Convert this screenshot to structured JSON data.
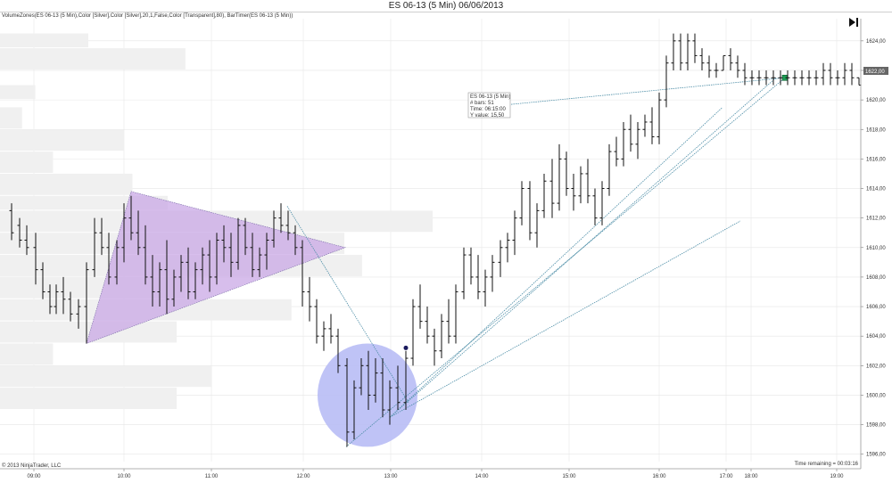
{
  "window": {
    "title": "ES 06-13 (5 Min)  06/06/2013",
    "indicator_label": "VolumeZones(ES 06-13 (5 Min),Color [Silver],Color [Silver],20,1,False,Color [Transparent],80), BarTimer(ES 06-13 (5 Min))",
    "copyright": "© 2013 NinjaTrader, LLC",
    "time_remaining": "Time remaining = 00:03:16",
    "play_icon": "skip-to-end-icon"
  },
  "tooltip": {
    "line1": "ES 06-13 (5 Min)",
    "line2": "# bars:   51",
    "line3": "Time:      06:15:00",
    "line4": "Y value: 15,50"
  },
  "price_marker": "1622,00",
  "colors": {
    "bars": "#111111",
    "grid": "#e6e6e6",
    "volume_zone": "#f0f0f0",
    "triangle": "#c9a8e6",
    "ellipse": "#b8bcf5",
    "line": "#4f8fa8",
    "price_marker_bg": "#666666",
    "square_marker": "#1f9d55",
    "dot_marker": "#1b1b5e"
  },
  "chart_data": {
    "type": "ohlc",
    "title": "ES 06-13 (5 Min)  06/06/2013",
    "ylim": [
      1595.5,
      1625.5
    ],
    "yticks": [
      1596,
      1598,
      1600,
      1602,
      1604,
      1606,
      1608,
      1610,
      1612,
      1614,
      1616,
      1618,
      1620,
      1622,
      1624
    ],
    "yticklabels": [
      "1596,00",
      "1598,00",
      "1600,00",
      "1602,00",
      "1604,00",
      "1606,00",
      "1608,00",
      "1610,00",
      "1612,00",
      "1614,00",
      "1616,00",
      "1618,00",
      "1620,00",
      "1622,00",
      "1624,00"
    ],
    "xticks": [
      "09:00",
      "10:00",
      "11:00",
      "12:00",
      "13:00",
      "14:00",
      "15:00",
      "16:00",
      "17:00",
      "18:00",
      "19:00"
    ],
    "grid": true,
    "bars": [
      {
        "x": 13,
        "o": 1612.5,
        "h": 1613.0,
        "l": 1610.5,
        "c": 1611.0
      },
      {
        "x": 22,
        "o": 1611.5,
        "h": 1612.0,
        "l": 1610.0,
        "c": 1610.5
      },
      {
        "x": 30,
        "o": 1610.5,
        "h": 1611.5,
        "l": 1609.5,
        "c": 1610.0
      },
      {
        "x": 40,
        "o": 1610.0,
        "h": 1611.0,
        "l": 1607.5,
        "c": 1608.5
      },
      {
        "x": 48,
        "o": 1608.5,
        "h": 1609.0,
        "l": 1606.5,
        "c": 1607.0
      },
      {
        "x": 56,
        "o": 1607.0,
        "h": 1607.5,
        "l": 1605.5,
        "c": 1606.0
      },
      {
        "x": 63,
        "o": 1606.0,
        "h": 1607.5,
        "l": 1605.5,
        "c": 1607.0
      },
      {
        "x": 71,
        "o": 1607.0,
        "h": 1608.0,
        "l": 1605.5,
        "c": 1606.5
      },
      {
        "x": 79,
        "o": 1606.5,
        "h": 1607.0,
        "l": 1605.0,
        "c": 1605.5
      },
      {
        "x": 88,
        "o": 1605.5,
        "h": 1606.5,
        "l": 1604.5,
        "c": 1606.0
      },
      {
        "x": 97,
        "o": 1606.0,
        "h": 1609.0,
        "l": 1603.5,
        "c": 1608.5
      },
      {
        "x": 106,
        "o": 1608.5,
        "h": 1612.0,
        "l": 1608.0,
        "c": 1611.0
      },
      {
        "x": 114,
        "o": 1611.0,
        "h": 1612.0,
        "l": 1609.5,
        "c": 1610.0
      },
      {
        "x": 122,
        "o": 1610.0,
        "h": 1611.0,
        "l": 1607.5,
        "c": 1608.0
      },
      {
        "x": 131,
        "o": 1608.0,
        "h": 1610.5,
        "l": 1607.5,
        "c": 1610.0
      },
      {
        "x": 139,
        "o": 1610.0,
        "h": 1613.0,
        "l": 1609.0,
        "c": 1612.0
      },
      {
        "x": 147,
        "o": 1612.0,
        "h": 1613.5,
        "l": 1610.5,
        "c": 1611.0
      },
      {
        "x": 155,
        "o": 1611.0,
        "h": 1612.5,
        "l": 1609.5,
        "c": 1610.0
      },
      {
        "x": 163,
        "o": 1610.0,
        "h": 1611.5,
        "l": 1607.5,
        "c": 1608.0
      },
      {
        "x": 171,
        "o": 1608.0,
        "h": 1609.5,
        "l": 1606.0,
        "c": 1607.0
      },
      {
        "x": 179,
        "o": 1607.0,
        "h": 1609.0,
        "l": 1606.0,
        "c": 1608.5
      },
      {
        "x": 187,
        "o": 1608.5,
        "h": 1610.5,
        "l": 1605.5,
        "c": 1606.5
      },
      {
        "x": 195,
        "o": 1606.5,
        "h": 1608.5,
        "l": 1606.0,
        "c": 1608.0
      },
      {
        "x": 203,
        "o": 1608.0,
        "h": 1609.5,
        "l": 1607.0,
        "c": 1609.0
      },
      {
        "x": 211,
        "o": 1609.0,
        "h": 1610.0,
        "l": 1606.5,
        "c": 1607.0
      },
      {
        "x": 219,
        "o": 1607.0,
        "h": 1609.0,
        "l": 1606.5,
        "c": 1608.5
      },
      {
        "x": 227,
        "o": 1608.5,
        "h": 1610.0,
        "l": 1607.5,
        "c": 1609.5
      },
      {
        "x": 235,
        "o": 1609.5,
        "h": 1610.5,
        "l": 1607.0,
        "c": 1608.0
      },
      {
        "x": 243,
        "o": 1608.0,
        "h": 1611.0,
        "l": 1607.5,
        "c": 1610.5
      },
      {
        "x": 251,
        "o": 1610.5,
        "h": 1611.5,
        "l": 1609.0,
        "c": 1610.0
      },
      {
        "x": 259,
        "o": 1610.0,
        "h": 1611.0,
        "l": 1608.0,
        "c": 1609.0
      },
      {
        "x": 267,
        "o": 1609.0,
        "h": 1612.0,
        "l": 1608.5,
        "c": 1611.5
      },
      {
        "x": 275,
        "o": 1611.5,
        "h": 1612.0,
        "l": 1609.5,
        "c": 1610.0
      },
      {
        "x": 283,
        "o": 1610.0,
        "h": 1611.0,
        "l": 1608.0,
        "c": 1608.5
      },
      {
        "x": 291,
        "o": 1608.5,
        "h": 1610.0,
        "l": 1608.0,
        "c": 1609.5
      },
      {
        "x": 299,
        "o": 1609.5,
        "h": 1611.0,
        "l": 1608.5,
        "c": 1610.5
      },
      {
        "x": 307,
        "o": 1610.5,
        "h": 1612.5,
        "l": 1610.0,
        "c": 1612.0
      },
      {
        "x": 315,
        "o": 1612.0,
        "h": 1613.0,
        "l": 1611.0,
        "c": 1611.5
      },
      {
        "x": 323,
        "o": 1611.5,
        "h": 1612.5,
        "l": 1610.5,
        "c": 1611.0
      },
      {
        "x": 331,
        "o": 1611.0,
        "h": 1611.5,
        "l": 1609.5,
        "c": 1610.0
      },
      {
        "x": 339,
        "o": 1610.0,
        "h": 1610.5,
        "l": 1606.0,
        "c": 1607.0
      },
      {
        "x": 347,
        "o": 1607.0,
        "h": 1608.0,
        "l": 1605.0,
        "c": 1606.0
      },
      {
        "x": 355,
        "o": 1606.0,
        "h": 1606.5,
        "l": 1603.5,
        "c": 1604.0
      },
      {
        "x": 363,
        "o": 1604.0,
        "h": 1605.0,
        "l": 1603.0,
        "c": 1604.5
      },
      {
        "x": 371,
        "o": 1604.5,
        "h": 1605.5,
        "l": 1603.5,
        "c": 1604.0
      },
      {
        "x": 379,
        "o": 1604.0,
        "h": 1604.5,
        "l": 1601.5,
        "c": 1602.0
      },
      {
        "x": 389,
        "o": 1602.0,
        "h": 1602.5,
        "l": 1596.5,
        "c": 1597.5
      },
      {
        "x": 397,
        "o": 1597.5,
        "h": 1601.0,
        "l": 1597.0,
        "c": 1600.5
      },
      {
        "x": 405,
        "o": 1600.5,
        "h": 1602.5,
        "l": 1600.0,
        "c": 1602.0
      },
      {
        "x": 413,
        "o": 1602.0,
        "h": 1603.0,
        "l": 1599.0,
        "c": 1600.0
      },
      {
        "x": 421,
        "o": 1600.0,
        "h": 1602.5,
        "l": 1599.5,
        "c": 1601.5
      },
      {
        "x": 429,
        "o": 1601.5,
        "h": 1602.5,
        "l": 1598.5,
        "c": 1599.0
      },
      {
        "x": 437,
        "o": 1599.0,
        "h": 1601.0,
        "l": 1598.0,
        "c": 1600.5
      },
      {
        "x": 446,
        "o": 1600.5,
        "h": 1602.0,
        "l": 1599.0,
        "c": 1599.5
      },
      {
        "x": 455,
        "o": 1599.5,
        "h": 1603.0,
        "l": 1599.0,
        "c": 1602.5
      },
      {
        "x": 463,
        "o": 1602.5,
        "h": 1606.5,
        "l": 1602.0,
        "c": 1606.0
      },
      {
        "x": 471,
        "o": 1606.0,
        "h": 1607.5,
        "l": 1604.5,
        "c": 1605.0
      },
      {
        "x": 479,
        "o": 1605.0,
        "h": 1606.0,
        "l": 1603.5,
        "c": 1604.0
      },
      {
        "x": 487,
        "o": 1604.0,
        "h": 1604.5,
        "l": 1602.0,
        "c": 1603.0
      },
      {
        "x": 495,
        "o": 1603.0,
        "h": 1605.5,
        "l": 1602.5,
        "c": 1605.0
      },
      {
        "x": 503,
        "o": 1605.0,
        "h": 1606.5,
        "l": 1603.5,
        "c": 1604.0
      },
      {
        "x": 511,
        "o": 1604.0,
        "h": 1607.5,
        "l": 1603.5,
        "c": 1607.0
      },
      {
        "x": 520,
        "o": 1607.0,
        "h": 1610.0,
        "l": 1606.5,
        "c": 1609.5
      },
      {
        "x": 528,
        "o": 1609.5,
        "h": 1610.0,
        "l": 1607.5,
        "c": 1608.0
      },
      {
        "x": 536,
        "o": 1608.0,
        "h": 1609.5,
        "l": 1606.5,
        "c": 1607.0
      },
      {
        "x": 544,
        "o": 1607.0,
        "h": 1608.5,
        "l": 1606.0,
        "c": 1608.0
      },
      {
        "x": 552,
        "o": 1608.0,
        "h": 1609.5,
        "l": 1607.0,
        "c": 1609.0
      },
      {
        "x": 561,
        "o": 1609.0,
        "h": 1610.5,
        "l": 1608.0,
        "c": 1610.0
      },
      {
        "x": 569,
        "o": 1610.0,
        "h": 1611.0,
        "l": 1609.0,
        "c": 1610.5
      },
      {
        "x": 577,
        "o": 1610.5,
        "h": 1612.5,
        "l": 1609.5,
        "c": 1612.0
      },
      {
        "x": 585,
        "o": 1612.0,
        "h": 1614.5,
        "l": 1611.5,
        "c": 1614.0
      },
      {
        "x": 594,
        "o": 1614.0,
        "h": 1614.5,
        "l": 1610.5,
        "c": 1611.0
      },
      {
        "x": 602,
        "o": 1611.0,
        "h": 1613.0,
        "l": 1610.0,
        "c": 1612.5
      },
      {
        "x": 610,
        "o": 1612.5,
        "h": 1615.0,
        "l": 1612.0,
        "c": 1614.5
      },
      {
        "x": 619,
        "o": 1614.5,
        "h": 1616.0,
        "l": 1612.0,
        "c": 1613.0
      },
      {
        "x": 627,
        "o": 1613.0,
        "h": 1617.0,
        "l": 1612.5,
        "c": 1616.0
      },
      {
        "x": 635,
        "o": 1616.0,
        "h": 1616.5,
        "l": 1613.5,
        "c": 1614.0
      },
      {
        "x": 643,
        "o": 1614.0,
        "h": 1615.0,
        "l": 1612.5,
        "c": 1613.5
      },
      {
        "x": 651,
        "o": 1613.5,
        "h": 1615.5,
        "l": 1613.0,
        "c": 1615.0
      },
      {
        "x": 659,
        "o": 1615.0,
        "h": 1616.0,
        "l": 1613.0,
        "c": 1613.5
      },
      {
        "x": 667,
        "o": 1613.5,
        "h": 1614.0,
        "l": 1611.5,
        "c": 1612.0
      },
      {
        "x": 675,
        "o": 1612.0,
        "h": 1614.5,
        "l": 1611.5,
        "c": 1614.0
      },
      {
        "x": 683,
        "o": 1614.0,
        "h": 1617.0,
        "l": 1613.5,
        "c": 1616.5
      },
      {
        "x": 691,
        "o": 1616.5,
        "h": 1617.5,
        "l": 1615.5,
        "c": 1616.0
      },
      {
        "x": 699,
        "o": 1616.0,
        "h": 1618.5,
        "l": 1615.5,
        "c": 1618.0
      },
      {
        "x": 707,
        "o": 1618.0,
        "h": 1619.0,
        "l": 1616.5,
        "c": 1617.0
      },
      {
        "x": 715,
        "o": 1617.0,
        "h": 1618.5,
        "l": 1616.0,
        "c": 1618.0
      },
      {
        "x": 723,
        "o": 1618.0,
        "h": 1619.0,
        "l": 1617.5,
        "c": 1618.5
      },
      {
        "x": 731,
        "o": 1618.5,
        "h": 1619.5,
        "l": 1617.0,
        "c": 1617.5
      },
      {
        "x": 739,
        "o": 1617.5,
        "h": 1620.5,
        "l": 1617.0,
        "c": 1620.0
      },
      {
        "x": 747,
        "o": 1620.0,
        "h": 1623.0,
        "l": 1619.5,
        "c": 1622.5
      },
      {
        "x": 755,
        "o": 1622.5,
        "h": 1624.5,
        "l": 1622.0,
        "c": 1624.0
      },
      {
        "x": 763,
        "o": 1624.0,
        "h": 1624.5,
        "l": 1622.0,
        "c": 1622.5
      },
      {
        "x": 771,
        "o": 1622.5,
        "h": 1624.5,
        "l": 1622.0,
        "c": 1624.0
      },
      {
        "x": 779,
        "o": 1624.0,
        "h": 1624.5,
        "l": 1622.5,
        "c": 1623.0
      },
      {
        "x": 787,
        "o": 1623.0,
        "h": 1623.5,
        "l": 1622.0,
        "c": 1622.5
      },
      {
        "x": 795,
        "o": 1622.5,
        "h": 1623.0,
        "l": 1621.5,
        "c": 1622.0
      },
      {
        "x": 803,
        "o": 1622.0,
        "h": 1622.5,
        "l": 1621.5,
        "c": 1622.0
      },
      {
        "x": 811,
        "o": 1622.0,
        "h": 1623.0,
        "l": 1622.0,
        "c": 1623.0
      },
      {
        "x": 819,
        "o": 1623.0,
        "h": 1623.5,
        "l": 1622.0,
        "c": 1622.5
      },
      {
        "x": 827,
        "o": 1622.5,
        "h": 1623.0,
        "l": 1621.5,
        "c": 1622.0
      },
      {
        "x": 835,
        "o": 1622.0,
        "h": 1622.5,
        "l": 1621.0,
        "c": 1621.5
      },
      {
        "x": 843,
        "o": 1621.5,
        "h": 1622.0,
        "l": 1621.0,
        "c": 1621.5
      },
      {
        "x": 851,
        "o": 1621.5,
        "h": 1622.0,
        "l": 1621.0,
        "c": 1621.5
      },
      {
        "x": 859,
        "o": 1621.5,
        "h": 1622.0,
        "l": 1621.0,
        "c": 1621.5
      },
      {
        "x": 867,
        "o": 1621.5,
        "h": 1622.0,
        "l": 1621.0,
        "c": 1621.5
      },
      {
        "x": 875,
        "o": 1621.5,
        "h": 1622.0,
        "l": 1621.0,
        "c": 1621.5
      },
      {
        "x": 883,
        "o": 1621.5,
        "h": 1622.0,
        "l": 1621.0,
        "c": 1621.5
      },
      {
        "x": 891,
        "o": 1621.5,
        "h": 1622.0,
        "l": 1621.0,
        "c": 1621.5
      },
      {
        "x": 899,
        "o": 1621.5,
        "h": 1622.0,
        "l": 1621.0,
        "c": 1621.5
      },
      {
        "x": 907,
        "o": 1621.5,
        "h": 1622.0,
        "l": 1621.0,
        "c": 1621.5
      },
      {
        "x": 915,
        "o": 1621.5,
        "h": 1622.0,
        "l": 1621.0,
        "c": 1621.5
      },
      {
        "x": 923,
        "o": 1621.5,
        "h": 1622.5,
        "l": 1621.0,
        "c": 1622.0
      },
      {
        "x": 931,
        "o": 1622.0,
        "h": 1622.5,
        "l": 1621.0,
        "c": 1621.5
      },
      {
        "x": 939,
        "o": 1621.5,
        "h": 1622.0,
        "l": 1621.0,
        "c": 1621.5
      },
      {
        "x": 947,
        "o": 1621.5,
        "h": 1622.5,
        "l": 1621.0,
        "c": 1622.0
      },
      {
        "x": 955,
        "o": 1622.0,
        "h": 1622.5,
        "l": 1621.0,
        "c": 1621.5
      },
      {
        "x": 963,
        "o": 1621.5,
        "h": 1621.5,
        "l": 1621.0,
        "c": 1621.0
      }
    ],
    "volume_zones": [
      {
        "lo": 1623.5,
        "hi": 1624.5,
        "rel": 0.2
      },
      {
        "lo": 1622.0,
        "hi": 1623.5,
        "rel": 0.42
      },
      {
        "lo": 1620.0,
        "hi": 1621.0,
        "rel": 0.08
      },
      {
        "lo": 1618.0,
        "hi": 1619.5,
        "rel": 0.05
      },
      {
        "lo": 1616.5,
        "hi": 1618.0,
        "rel": 0.28
      },
      {
        "lo": 1615.0,
        "hi": 1616.5,
        "rel": 0.12
      },
      {
        "lo": 1613.5,
        "hi": 1615.0,
        "rel": 0.3
      },
      {
        "lo": 1612.5,
        "hi": 1613.5,
        "rel": 0.38
      },
      {
        "lo": 1611.0,
        "hi": 1612.5,
        "rel": 0.98
      },
      {
        "lo": 1609.5,
        "hi": 1611.0,
        "rel": 0.78
      },
      {
        "lo": 1608.0,
        "hi": 1609.5,
        "rel": 0.82
      },
      {
        "lo": 1606.5,
        "hi": 1608.0,
        "rel": 0.42
      },
      {
        "lo": 1605.0,
        "hi": 1606.5,
        "rel": 0.66
      },
      {
        "lo": 1603.5,
        "hi": 1605.0,
        "rel": 0.4
      },
      {
        "lo": 1602.0,
        "hi": 1603.5,
        "rel": 0.12
      },
      {
        "lo": 1600.5,
        "hi": 1602.0,
        "rel": 0.48
      },
      {
        "lo": 1599.0,
        "hi": 1600.5,
        "rel": 0.4
      }
    ],
    "drawings": {
      "triangle": [
        [
          97,
          1603.5
        ],
        [
          147,
          1613.8
        ],
        [
          387,
          1610.0
        ]
      ],
      "ellipse": {
        "cx": 412,
        "cy": 1600.0,
        "rx": 56,
        "ry": 3.5
      },
      "lines": [
        [
          [
            322,
            1612.8
          ],
          [
            458,
            1599.5
          ]
        ],
        [
          [
            388,
            1596.5
          ],
          [
            880,
            1621.5
          ]
        ],
        [
          [
            437,
            1598.5
          ],
          [
            810,
            1619.5
          ]
        ],
        [
          [
            437,
            1598.5
          ],
          [
            870,
            1621.5
          ]
        ],
        [
          [
            437,
            1598.5
          ],
          [
            830,
            1611.8
          ]
        ],
        [
          [
            573,
            1619.7
          ],
          [
            880,
            1621.5
          ]
        ]
      ],
      "square_marker": [
        880,
        1621.5
      ],
      "dot_marker": [
        455,
        1603.2
      ]
    }
  }
}
